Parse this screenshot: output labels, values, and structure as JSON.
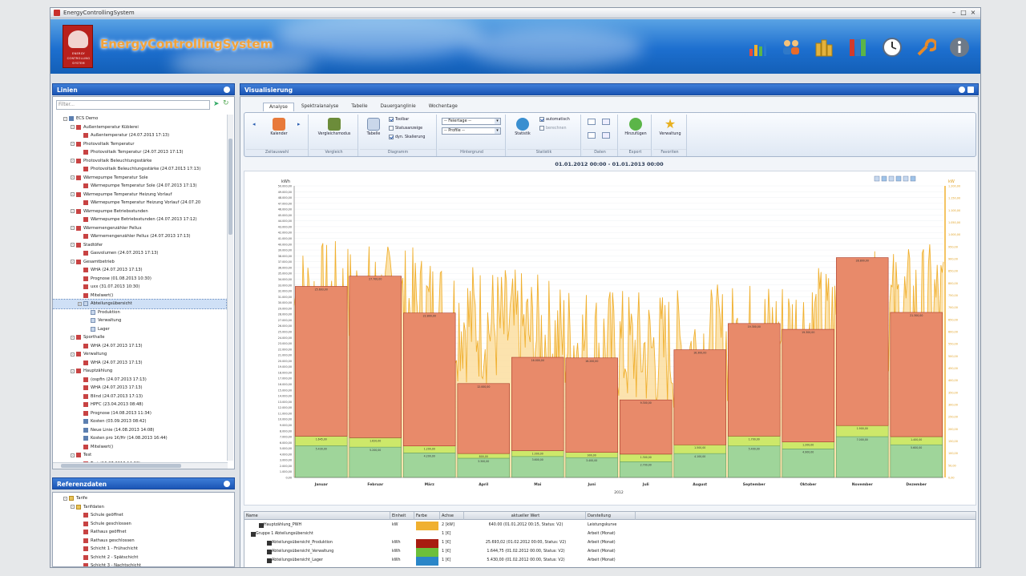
{
  "window": {
    "title": "EnergyControllingSystem"
  },
  "header": {
    "brand": "EnergyControllingSystem",
    "logo_text": [
      "ENERGY",
      "CONTROLLING",
      "SYSTEM"
    ],
    "icons": [
      "bar-chart-icon",
      "people-icon",
      "coins-icon",
      "binders-icon",
      "clock-icon",
      "wrench-icon",
      "info-icon"
    ]
  },
  "left_panel": {
    "title": "Linien",
    "filter_placeholder": "Filter...",
    "tree": [
      {
        "level": 1,
        "icon": "db",
        "text": "ECS Demo",
        "exp": "-"
      },
      {
        "level": 2,
        "icon": "chart",
        "text": "Außentemperatur Küblerei",
        "exp": "-"
      },
      {
        "level": 3,
        "icon": "chart",
        "text": "Außentemperatur (24.07.2013 17:13)"
      },
      {
        "level": 2,
        "icon": "chart",
        "text": "Photovoltaik Temperatur",
        "exp": "-"
      },
      {
        "level": 3,
        "icon": "chart",
        "text": "Photovoltaik Temperatur (24.07.2013 17:13)"
      },
      {
        "level": 2,
        "icon": "chart",
        "text": "Photovoltaik Beleuchtungsstärke",
        "exp": "-"
      },
      {
        "level": 3,
        "icon": "chart",
        "text": "Photovoltaik Beleuchtungsstärke (24.07.2013 17:13)"
      },
      {
        "level": 2,
        "icon": "chart",
        "text": "Wärmepumpe Temperatur Sole",
        "exp": "-"
      },
      {
        "level": 3,
        "icon": "chart",
        "text": "Wärmepumpe Temperatur Sole (24.07.2013 17:13)"
      },
      {
        "level": 2,
        "icon": "chart",
        "text": "Wärmepumpe Temperatur Heizung Vorlauf",
        "exp": "-"
      },
      {
        "level": 3,
        "icon": "chart",
        "text": "Wärmepumpe Temperatur Heizung Vorlauf (24.07.20"
      },
      {
        "level": 2,
        "icon": "chart",
        "text": "Wärmepumpe Betriebsstunden",
        "exp": "-"
      },
      {
        "level": 3,
        "icon": "chart",
        "text": "Wärmepumpe Betriebsstunden (24.07.2013 17:12)"
      },
      {
        "level": 2,
        "icon": "chart",
        "text": "Wärmemengenzähler Pellux",
        "exp": "-"
      },
      {
        "level": 3,
        "icon": "chart",
        "text": "Wärmemengenzähler Pellux (24.07.2013 17:13)"
      },
      {
        "level": 2,
        "icon": "chart",
        "text": "Stadtöfer",
        "exp": "-"
      },
      {
        "level": 3,
        "icon": "chart",
        "text": "Gasvolumen (24.07.2013 17:13)"
      },
      {
        "level": 2,
        "icon": "chart",
        "text": "Gesamtbetrieb",
        "exp": "-"
      },
      {
        "level": 3,
        "icon": "chart",
        "text": "WHA (24.07.2013 17:13)"
      },
      {
        "level": 3,
        "icon": "chart",
        "text": "Prognose (01.08.2013 10:30)"
      },
      {
        "level": 3,
        "icon": "chart",
        "text": "uxx (31.07.2013 10:30)"
      },
      {
        "level": 3,
        "icon": "chart",
        "text": "Mitelwert()"
      },
      {
        "level": 3,
        "icon": "page",
        "text": "Abteilungsübersicht",
        "exp": "-",
        "selected": true
      },
      {
        "level": 4,
        "icon": "page",
        "text": "Produktion"
      },
      {
        "level": 4,
        "icon": "page",
        "text": "Verwaltung"
      },
      {
        "level": 4,
        "icon": "page",
        "text": "Lager"
      },
      {
        "level": 2,
        "icon": "chart",
        "text": "Sporthalle",
        "exp": "-"
      },
      {
        "level": 3,
        "icon": "chart",
        "text": "WHA (24.07.2013 17:13)"
      },
      {
        "level": 2,
        "icon": "chart",
        "text": "Verwaltung",
        "exp": "-"
      },
      {
        "level": 3,
        "icon": "chart",
        "text": "WHA (24.07.2013 17:13)"
      },
      {
        "level": 2,
        "icon": "chart",
        "text": "Hauptzählung",
        "exp": "-"
      },
      {
        "level": 3,
        "icon": "chart",
        "text": "(ospfin (24.07.2013 17:13)"
      },
      {
        "level": 3,
        "icon": "chart",
        "text": "WHA (24.07.2013 17:13)"
      },
      {
        "level": 3,
        "icon": "chart",
        "text": "Blind (24.07.2013 17:13)"
      },
      {
        "level": 3,
        "icon": "chart",
        "text": "HPFC (23.04.2013 08:48)"
      },
      {
        "level": 3,
        "icon": "chart",
        "text": "Prognose (14.08.2013 11:34)"
      },
      {
        "level": 3,
        "icon": "db",
        "text": "Kosten (03.09.2013 08:42)"
      },
      {
        "level": 3,
        "icon": "db",
        "text": "Neue Linie (14.08.2013 14:08)"
      },
      {
        "level": 3,
        "icon": "db",
        "text": "Kosten pro 1€/Hr (14.08.2013 16:44)"
      },
      {
        "level": 3,
        "icon": "chart",
        "text": "Mitelwert()"
      },
      {
        "level": 2,
        "icon": "chart",
        "text": "Test",
        "exp": "-"
      },
      {
        "level": 3,
        "icon": "chart",
        "text": "Test (16.07.2013 14:02)"
      }
    ]
  },
  "ref_panel": {
    "title": "Referenzdaten",
    "tree": [
      {
        "level": 1,
        "icon": "folder",
        "text": "Tarife",
        "exp": "-"
      },
      {
        "level": 2,
        "icon": "folder",
        "text": "Tarifdaten",
        "exp": "-"
      },
      {
        "level": 3,
        "icon": "chart",
        "text": "Schule geöffnet"
      },
      {
        "level": 3,
        "icon": "chart",
        "text": "Schule geschlossen"
      },
      {
        "level": 3,
        "icon": "chart",
        "text": "Rathaus geöffnet"
      },
      {
        "level": 3,
        "icon": "chart",
        "text": "Rathaus geschlossen"
      },
      {
        "level": 3,
        "icon": "chart",
        "text": "Schicht 1 - Frühschicht"
      },
      {
        "level": 3,
        "icon": "chart",
        "text": "Schicht 2 - Spätschicht"
      },
      {
        "level": 3,
        "icon": "chart",
        "text": "Schicht 3 - Nachtschicht"
      }
    ]
  },
  "main": {
    "title": "Visualisierung",
    "tabs": [
      "Analyse",
      "Spektralanalyse",
      "Tabelle",
      "Dauerganglinie",
      "Wochentage"
    ],
    "active_tab": "Analyse",
    "ribbon": {
      "zeitauswahl": {
        "label": "Zeitauswahl",
        "button": "Kalender"
      },
      "vergleich": {
        "label": "Vergleich",
        "button": "Vergleichsmodus"
      },
      "diagramm": {
        "label": "Diagramm",
        "button": "Tabelle",
        "checks": [
          {
            "text": "Toolbar",
            "on": true
          },
          {
            "text": "Statusanzeige",
            "on": false
          },
          {
            "text": "dyn. Skalierung",
            "on": true
          }
        ]
      },
      "hintergrund": {
        "label": "Hintergrund",
        "combo1": "-- Feiertage --",
        "combo2": "-- Profile --"
      },
      "statistik": {
        "label": "Statistik",
        "button": "Statistik",
        "checks": [
          {
            "text": "automatisch",
            "on": true
          },
          {
            "text": "berechnen",
            "on": false
          }
        ]
      },
      "daten": {
        "label": "Daten"
      },
      "export": {
        "label": "Export",
        "button": "Hinzufügen"
      },
      "favoriten": {
        "label": "Favoriten",
        "button": "Verwaltung"
      }
    },
    "date_range": "01.01.2012 00:00 - 01.01.2013 00:00",
    "grid": {
      "columns": [
        "Name",
        "Einheit",
        "Farbe",
        "Achse",
        "aktueller Wert",
        "Darstellung"
      ],
      "rows": [
        {
          "indent": 1,
          "name": "Hauptzählung_PWH",
          "unit": "kW",
          "color": "#f0b030",
          "axis": "2 [kW]",
          "value": "640.00 (01.01.2012 00:15, Status: V2)",
          "display": "Leistungskurve"
        },
        {
          "indent": 0,
          "name": "Gruppe 1 Abteilungsübersicht",
          "unit": "",
          "color": "",
          "axis": "1 [€]",
          "value": "",
          "display": "Arbeit (Monat)"
        },
        {
          "indent": 2,
          "name": "Abteilungsübersicht_Produktion",
          "unit": "kWh",
          "color": "#a81c10",
          "axis": "1 [€]",
          "value": "25.693,02 (01.02.2012 00:00, Status: V2)",
          "display": "Arbeit (Monat)"
        },
        {
          "indent": 2,
          "name": "Abteilungsübersicht_Verwaltung",
          "unit": "kWh",
          "color": "#6cbf3a",
          "axis": "1 [€]",
          "value": "1.644,75 (01.02.2012 00:00, Status: V2)",
          "display": "Arbeit (Monat)"
        },
        {
          "indent": 2,
          "name": "Abteilungsübersicht_Lager",
          "unit": "kWh",
          "color": "#2a86c8",
          "axis": "1 [€]",
          "value": "5.430,00 (01.02.2012 00:00, Status: V2)",
          "display": "Arbeit (Monat)"
        }
      ]
    }
  },
  "chart_data": {
    "type": "bar",
    "xlabel": "2012",
    "ylabel": "kWh",
    "categories": [
      "Januar",
      "Februar",
      "März",
      "April",
      "Mai",
      "Juni",
      "Juli",
      "August",
      "September",
      "Oktober",
      "November",
      "Dezember"
    ],
    "ylim": [
      0,
      50000
    ],
    "yticks": [
      0,
      1000,
      2000,
      3000,
      4000,
      5000,
      6000,
      7000,
      8000,
      9000,
      10000,
      11000,
      12000,
      13000,
      14000,
      15000,
      16000,
      17000,
      18000,
      19000,
      20000,
      21000,
      22000,
      23000,
      24000,
      25000,
      26000,
      27000,
      28000,
      29000,
      30000,
      31000,
      32000,
      33000,
      34000,
      35000,
      36000,
      37000,
      38000,
      39000,
      40000,
      41000,
      42000,
      43000,
      44000,
      45000,
      46000,
      47000,
      48000,
      49000,
      50000
    ],
    "series": [
      {
        "name": "Abteilungsübersicht_Lager",
        "color": "#9fd59a",
        "values": [
          5430,
          5200,
          4200,
          3300,
          3600,
          3400,
          2700,
          4100,
          5400,
          4900,
          7000,
          5600
        ]
      },
      {
        "name": "Abteilungsübersicht_Verwaltung",
        "color": "#cde86a",
        "values": [
          1645,
          1620,
          1200,
          800,
          1000,
          900,
          1300,
          1500,
          1700,
          1200,
          1900,
          1400
        ]
      },
      {
        "name": "Abteilungsübersicht_Produktion",
        "color": "#e88a6a",
        "values": [
          25693,
          27700,
          22800,
          12000,
          16000,
          16200,
          9300,
          16300,
          19300,
          19300,
          28800,
          21300
        ]
      }
    ],
    "overlay": {
      "name": "Hauptzählung_PWH",
      "color": "#f0b030",
      "ylim_right": [
        0,
        1200
      ]
    }
  }
}
